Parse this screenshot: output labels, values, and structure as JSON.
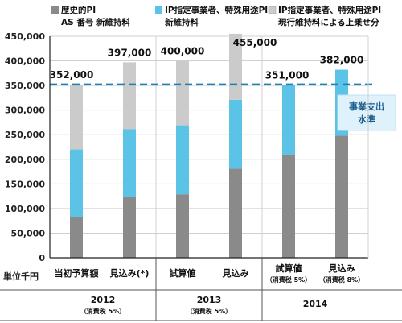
{
  "chart_data": {
    "type": "bar",
    "stacked": true,
    "ylabel": "",
    "yunit": "単位千円",
    "ylim": [
      0,
      450000
    ],
    "yticks": [
      0,
      50000,
      100000,
      150000,
      200000,
      250000,
      300000,
      350000,
      400000,
      450000
    ],
    "ytick_labels": [
      "0",
      "50,000",
      "100,000",
      "150,000",
      "200,000",
      "250,000",
      "300,000",
      "350,000",
      "400,000",
      "450,000"
    ],
    "grid": true,
    "categories": [
      "当初予算額",
      "見込み(*)",
      "試算値",
      "見込み",
      "試算値",
      "見込み"
    ],
    "category_subs": [
      "",
      "",
      "",
      "",
      "（消費税 5%）",
      "（消費税 8%）"
    ],
    "groups": [
      {
        "label": "2012",
        "sub": "（消費税 5%）",
        "span": [
          0,
          1
        ]
      },
      {
        "label": "2013",
        "sub": "（消費税 5%）",
        "span": [
          2,
          3
        ]
      },
      {
        "label": "2014",
        "sub": "",
        "span": [
          4,
          5
        ]
      }
    ],
    "series": [
      {
        "name": "歴史的PI AS番号 新維持料",
        "legend_lines": [
          "歴史的PI",
          "AS 番号 新維持料"
        ],
        "color": "#8a8a8a",
        "values": [
          82000,
          123000,
          129000,
          181000,
          210000,
          248000
        ]
      },
      {
        "name": "IP指定事業者、特殊用途PI 新維持料",
        "legend_lines": [
          "IP指定事業者、特殊用途PI",
          "新維持料"
        ],
        "color": "#5bc3e6",
        "values": [
          138000,
          138000,
          140000,
          140000,
          141000,
          134000
        ]
      },
      {
        "name": "IP指定事業者、特殊用途PI 現行維持料による上乗せ分",
        "legend_lines": [
          "IP指定事業者、特殊用途PI",
          "現行維持料による上乗せ分"
        ],
        "color": "#cbcbcb",
        "values": [
          132000,
          136000,
          131000,
          134000,
          0,
          0
        ]
      }
    ],
    "totals": [
      352000,
      397000,
      400000,
      455000,
      351000,
      382000
    ],
    "total_labels": [
      "352,000",
      "397,000",
      "400,000",
      "455,000",
      "351,000",
      "382,000"
    ],
    "reference_line": {
      "value": 352000,
      "color": "#1e7fb5",
      "label_lines": [
        "事業支出",
        "水準"
      ]
    }
  }
}
